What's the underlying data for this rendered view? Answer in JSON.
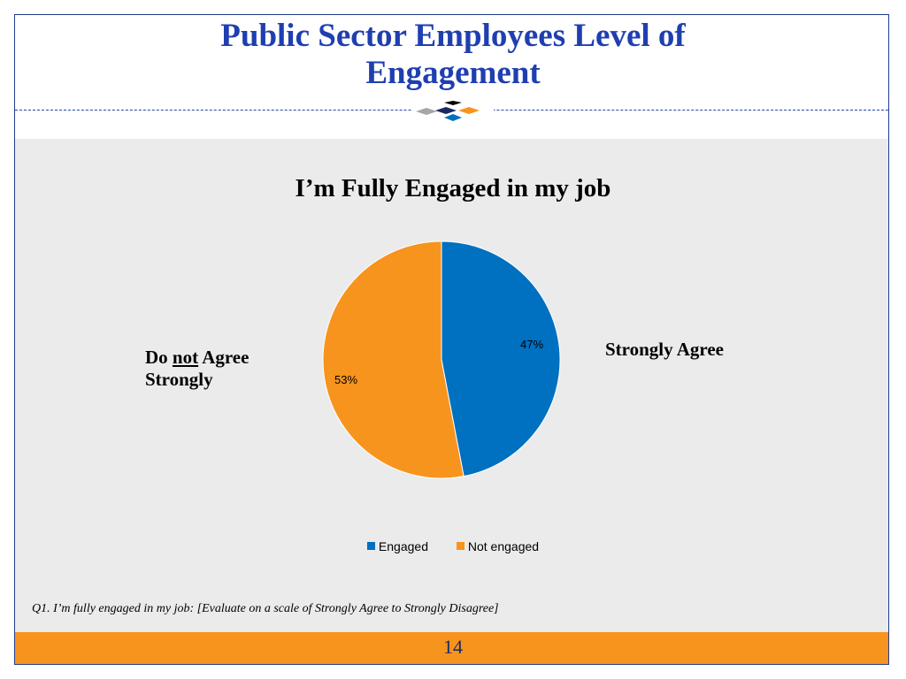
{
  "slide": {
    "title_line1": "Public Sector Employees Level of",
    "title_line2": "Engagement",
    "footnote": "Q1. I’m fully engaged in my job:  [Evaluate on a scale of Strongly Agree to Strongly Disagree]",
    "page_number": "14"
  },
  "labels": {
    "right": "Strongly Agree",
    "left_prefix": "Do ",
    "left_emphasis": "not",
    "left_suffix": " Agree",
    "left_line2": "Strongly"
  },
  "colors": {
    "title": "#1f3fb0",
    "engaged": "#0070c0",
    "not_engaged": "#f7941d",
    "panel": "#ebebeb",
    "footer": "#f7941d"
  },
  "chart_data": {
    "type": "pie",
    "title": "I’m Fully Engaged in my job",
    "slices": [
      {
        "name": "Engaged",
        "value": 47,
        "label": "47%",
        "color": "#0070c0"
      },
      {
        "name": "Not engaged",
        "value": 53,
        "label": "53%",
        "color": "#f7941d"
      }
    ],
    "legend_position": "bottom"
  }
}
